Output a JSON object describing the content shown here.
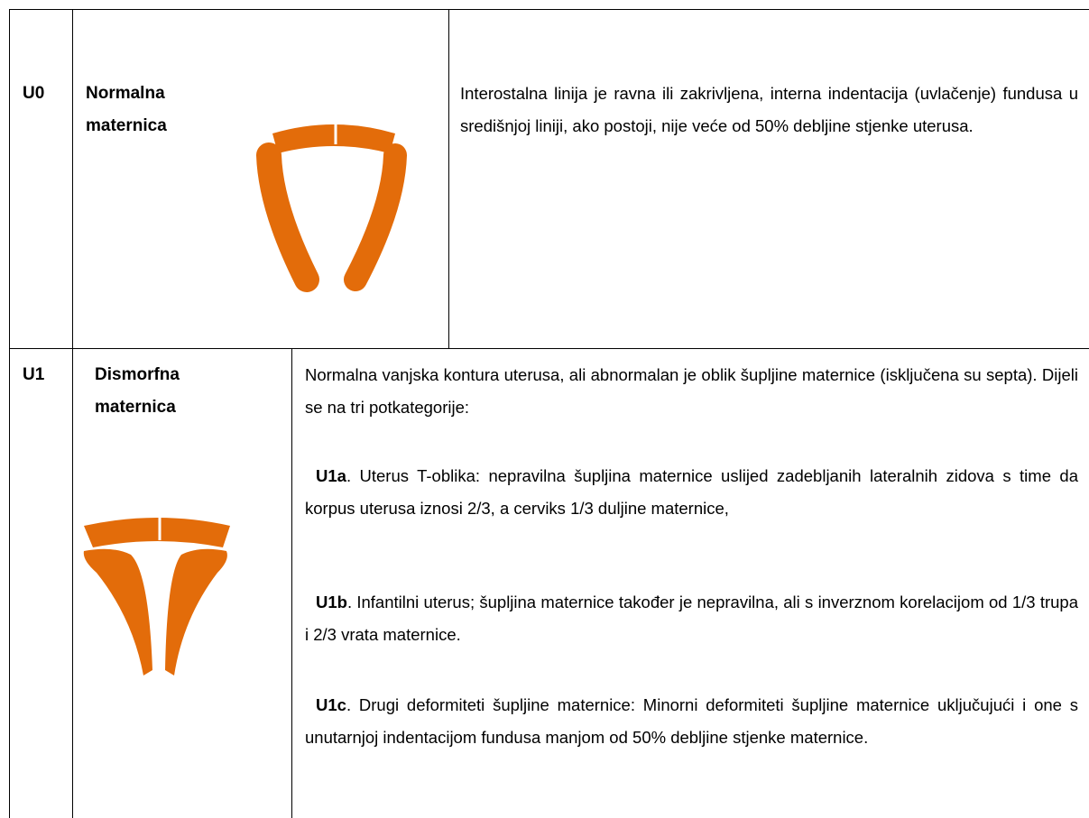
{
  "table": {
    "rows": [
      {
        "code": "U0",
        "name": "Normalna maternica",
        "description": [
          {
            "text": "Interostalna linija je ravna ili zakrivljena, interna indentacija (uvlačenje) fundusa u središnjoj liniji, ako postoji, nije veće od 50% debljine stjenke uterusa."
          }
        ]
      },
      {
        "code": "U1",
        "name": "Dismorfna maternica",
        "description": [
          {
            "text": "Normalna vanjska kontura uterusa, ali abnormalan je oblik šupljine maternice (isključena su septa). Dijeli se na tri potkategorije:"
          },
          {
            "lead": "U1a",
            "text": ". Uterus T-oblika: nepravilna šupljina maternice uslijed zadebljanih lateralnih zidova s time da korpus uterusa iznosi 2/3, a cerviks 1/3 duljine maternice,"
          },
          {
            "lead": "U1b",
            "text": ". Infantilni uterus; šupljina maternice također je nepravilna, ali s inverznom korelacijom od 1/3 trupa i 2/3 vrata maternice."
          },
          {
            "lead": "U1c",
            "text": ". Drugi deformiteti šupljine maternice: Minorni deformiteti šupljine maternice uključujući i one s unutarnjoj indentacijom fundusa manjom od 50% debljine stjenke maternice."
          }
        ]
      }
    ]
  }
}
